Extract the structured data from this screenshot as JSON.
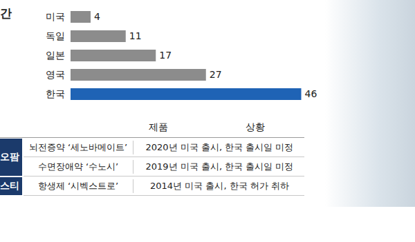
{
  "title": "간",
  "chart_data": {
    "type": "bar",
    "orientation": "horizontal",
    "categories": [
      "미국",
      "독일",
      "일본",
      "영국",
      "한국"
    ],
    "values": [
      4,
      11,
      17,
      27,
      46
    ],
    "colors": [
      "#8c8c8c",
      "#8c8c8c",
      "#8c8c8c",
      "#8c8c8c",
      "#1f63b5"
    ],
    "xlim": [
      0,
      48
    ],
    "data_labels": true,
    "tick_labels": "y"
  },
  "table": {
    "header": [
      "제품",
      "상황"
    ],
    "groups": [
      {
        "company": "오팜",
        "rows": [
          [
            "뇌전증약 ‘세노바메이트’",
            "2020년 미국 출시, 한국 출시일 미정"
          ],
          [
            "수면장애약 ‘수노시’",
            "2019년 미국 출시, 한국 출시일 미정"
          ]
        ]
      },
      {
        "company": "스티",
        "rows": [
          [
            "항생제 ‘시벡스트로’",
            "2014년 미국 출시, 한국 허가 취하"
          ]
        ]
      }
    ]
  }
}
